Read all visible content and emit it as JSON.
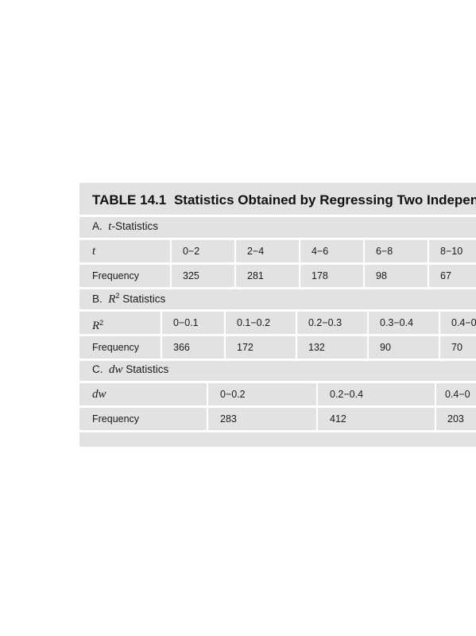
{
  "table": {
    "number": "TABLE 14.1",
    "title": "Statistics Obtained by Regressing Two Independent R",
    "sections": [
      {
        "label_prefix": "A.",
        "label_var": "t",
        "label_rest": "-Statistics",
        "header_label": "t",
        "row_label": "Frequency",
        "ranges": [
          "0−2",
          "2−4",
          "4−6",
          "6−8",
          "8−10"
        ],
        "frequencies": [
          "325",
          "281",
          "178",
          "98",
          "67"
        ]
      },
      {
        "label_prefix": "B.",
        "label_var": "R",
        "label_sup": "2",
        "label_rest": " Statistics",
        "header_label": "R",
        "header_sup": "2",
        "row_label": "Frequency",
        "ranges": [
          "0−0.1",
          "0.1−0.2",
          "0.2−0.3",
          "0.3−0.4",
          "0.4−0"
        ],
        "frequencies": [
          "366",
          "172",
          "132",
          "90",
          "70"
        ]
      },
      {
        "label_prefix": "C.",
        "label_var": "dw",
        "label_rest": " Statistics",
        "header_label": "dw",
        "row_label": "Frequency",
        "ranges": [
          "0−0.2",
          "0.2−0.4",
          "0.4−0"
        ],
        "frequencies": [
          "283",
          "412",
          "203"
        ]
      }
    ]
  }
}
